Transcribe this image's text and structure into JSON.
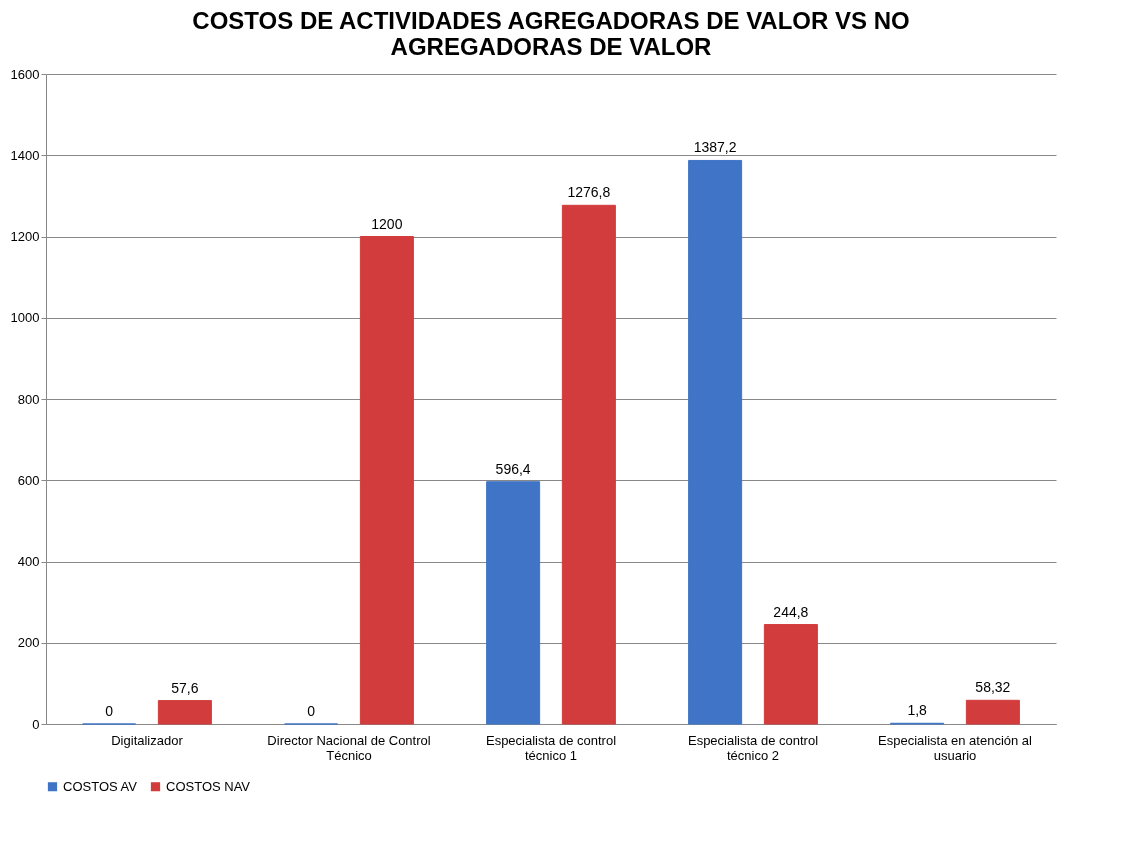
{
  "chart_data": {
    "type": "bar",
    "title": "COSTOS DE ACTIVIDADES AGREGADORAS DE VALOR VS NO AGREGADORAS DE VALOR",
    "categories": [
      "Digitalizador",
      "Director Nacional de Control Técnico",
      "Especialista de control técnico 1",
      "Especialista de control técnico 2",
      "Especialista en atención al usuario"
    ],
    "series": [
      {
        "name": "COSTOS AV",
        "color": "#3f74c6",
        "values": [
          0,
          0,
          596.4,
          1387.2,
          1.8
        ],
        "value_labels": [
          "0",
          "0",
          "596,4",
          "1387,2",
          "1,8"
        ]
      },
      {
        "name": "COSTOS NAV",
        "color": "#d23c3c",
        "values": [
          57.6,
          1200,
          1276.8,
          244.8,
          58.32
        ],
        "value_labels": [
          "57,6",
          "1200",
          "1276,8",
          "244,8",
          "58,32"
        ]
      }
    ],
    "ylim": [
      0,
      1600
    ],
    "yticks": [
      0,
      200,
      400,
      600,
      800,
      1000,
      1200,
      1400,
      1600
    ],
    "grid": "y",
    "legend": "bottom"
  }
}
